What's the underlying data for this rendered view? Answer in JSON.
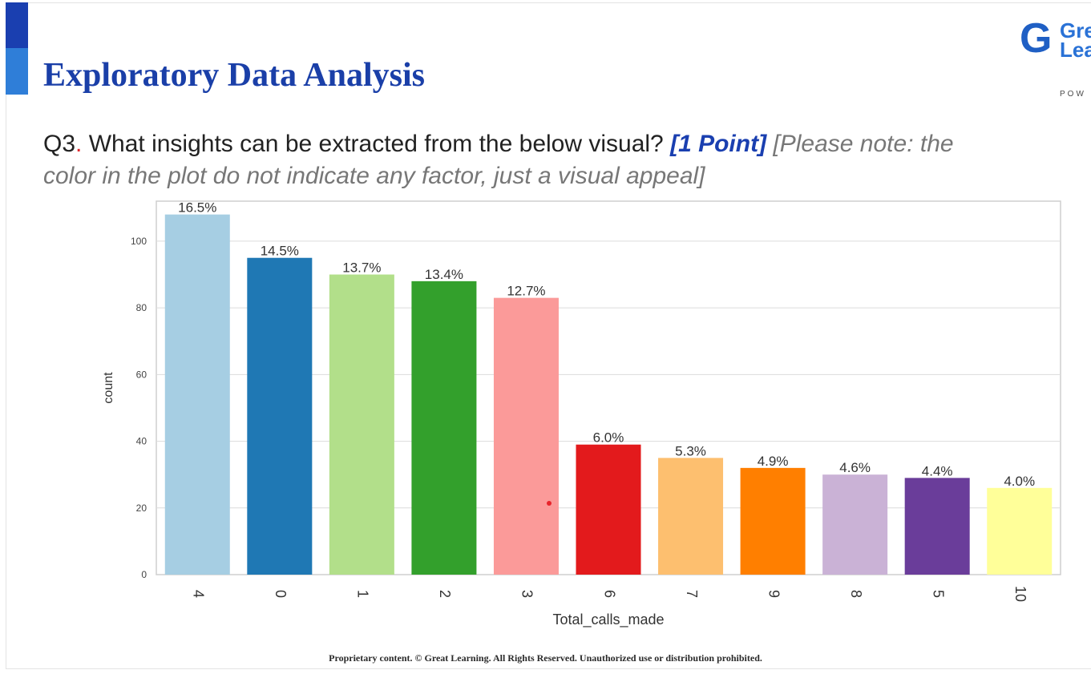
{
  "slide": {
    "title": "Exploratory Data Analysis",
    "logo": {
      "icon": "great-learning-logo-icon",
      "letter": "G",
      "word_top": "Gre",
      "word_bottom": "Lea",
      "tagline": "POW"
    },
    "question": {
      "label": "Q3",
      "dot": ".",
      "text": " What insights can be extracted from the below visual? ",
      "points": "[1 Point]",
      "note": " [Please note: the",
      "note_line2": "color in the plot do not indicate any factor, just a visual appeal]"
    },
    "footer": "Proprietary content. © Great Learning. All Rights Reserved. Unauthorized use or distribution prohibited."
  },
  "chart_data": {
    "type": "bar",
    "categories": [
      "4",
      "0",
      "1",
      "2",
      "3",
      "6",
      "7",
      "9",
      "8",
      "5",
      "10"
    ],
    "values": [
      108,
      95,
      90,
      88,
      83,
      39,
      35,
      32,
      30,
      29,
      26
    ],
    "labels": [
      "16.5%",
      "14.5%",
      "13.7%",
      "13.4%",
      "12.7%",
      "6.0%",
      "5.3%",
      "4.9%",
      "4.6%",
      "4.4%",
      "4.0%"
    ],
    "colors": [
      "#a6cee3",
      "#1f78b4",
      "#b2df8a",
      "#33a02c",
      "#fb9a99",
      "#e31a1c",
      "#fdbf6f",
      "#ff7f00",
      "#cab2d6",
      "#6a3d9a",
      "#ffff99"
    ],
    "xlabel": "Total_calls_made",
    "ylabel": "count",
    "ylim": [
      0,
      112
    ],
    "yticks": [
      0,
      20,
      40,
      60,
      80,
      100
    ],
    "grid": true
  }
}
